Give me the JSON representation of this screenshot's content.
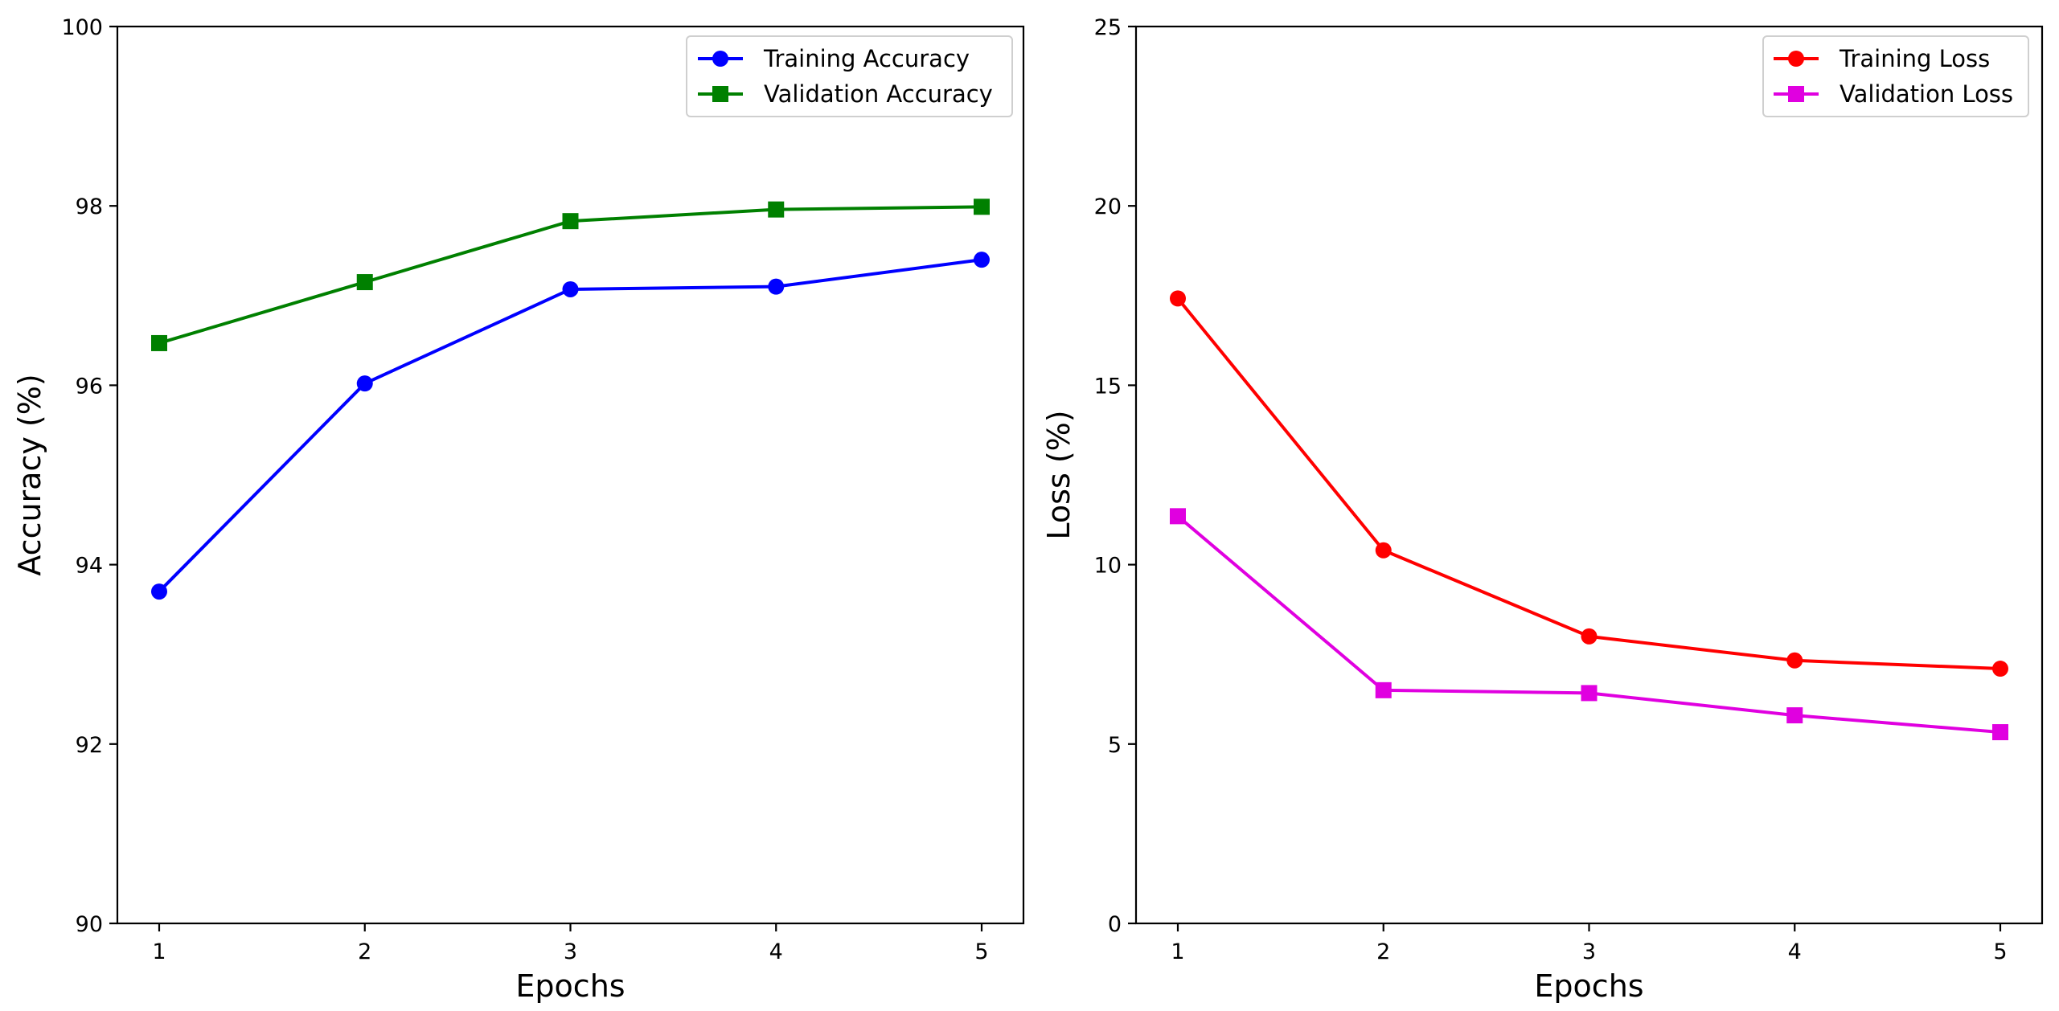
{
  "chart_data": [
    {
      "type": "line",
      "title": "",
      "xlabel": "Epochs",
      "ylabel": "Accuracy (%)",
      "x": [
        1,
        2,
        3,
        4,
        5
      ],
      "xticks": [
        "1",
        "2",
        "3",
        "4",
        "5"
      ],
      "ylim": [
        90,
        100
      ],
      "yticks": [
        "90",
        "92",
        "94",
        "96",
        "98",
        "100"
      ],
      "grid": false,
      "legend_position": "top-right",
      "series": [
        {
          "name": "Training Accuracy",
          "color": "#0000ff",
          "marker": "circle",
          "values": [
            93.7,
            96.02,
            97.07,
            97.1,
            97.4
          ]
        },
        {
          "name": "Validation Accuracy",
          "color": "#008000",
          "marker": "square",
          "values": [
            96.47,
            97.15,
            97.83,
            97.96,
            97.99
          ]
        }
      ]
    },
    {
      "type": "line",
      "title": "",
      "xlabel": "Epochs",
      "ylabel": "Loss (%)",
      "x": [
        1,
        2,
        3,
        4,
        5
      ],
      "xticks": [
        "1",
        "2",
        "3",
        "4",
        "5"
      ],
      "ylim": [
        0,
        25
      ],
      "yticks": [
        "0",
        "5",
        "10",
        "15",
        "20",
        "25"
      ],
      "grid": false,
      "legend_position": "top-right",
      "series": [
        {
          "name": "Training Loss",
          "color": "#ff0000",
          "marker": "circle",
          "values": [
            17.42,
            10.4,
            8.0,
            7.33,
            7.1
          ]
        },
        {
          "name": "Validation Loss",
          "color": "#e000e0",
          "marker": "square",
          "values": [
            11.35,
            6.5,
            6.42,
            5.8,
            5.33
          ]
        }
      ]
    }
  ]
}
